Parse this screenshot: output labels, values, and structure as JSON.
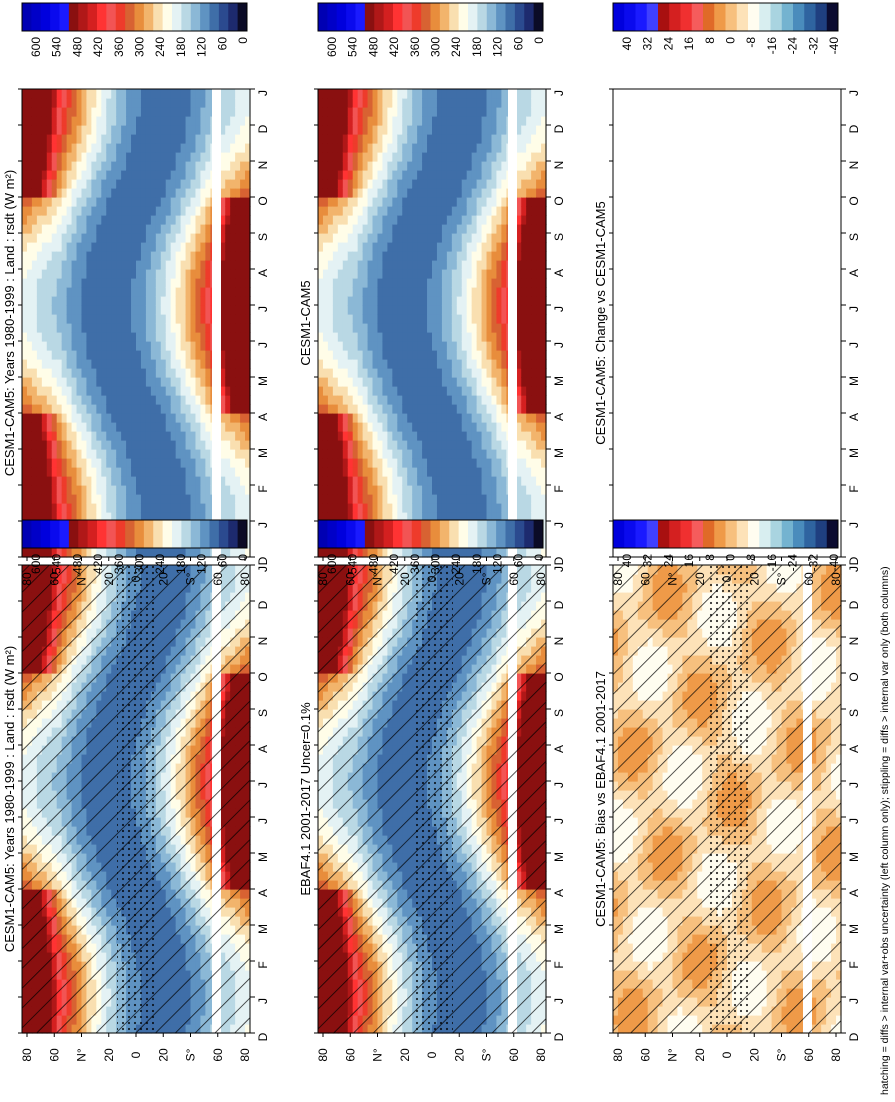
{
  "figure": {
    "footer_note": "hatching = diffs > internal var+obs uncertainty (left column only); stippling = diffs > internal var only (both columns)"
  },
  "palettes": {
    "abs_colors": [
      "#0b0b26",
      "#1d2a6e",
      "#2b4a8f",
      "#3f6ea8",
      "#5f93c2",
      "#8bb8d6",
      "#b9d8e4",
      "#e4f2f4",
      "#fffde8",
      "#f9dfb0",
      "#f2b46c",
      "#e88d3c",
      "#d86232",
      "#ee3b2b",
      "#f25454",
      "#ff3333",
      "#d42020",
      "#b01818",
      "#8a1010",
      "#1a1aff",
      "#0a0aee",
      "#0000dd",
      "#0000c8",
      "#0000b3"
    ],
    "abs_ticks": [
      "600",
      "540",
      "480",
      "420",
      "360",
      "300",
      "240",
      "180",
      "120",
      "60",
      "0"
    ],
    "diff_colors": [
      "#0000dd",
      "#0a0aee",
      "#1a1aff",
      "#4040ff",
      "#a81010",
      "#d42020",
      "#f03030",
      "#f55c5c",
      "#e06a28",
      "#ef9a48",
      "#f7c07e",
      "#fde2b8",
      "#fffdf0",
      "#d8eef0",
      "#a9d4e0",
      "#74b3d0",
      "#4a8cbc",
      "#2f64a0",
      "#1f3f80",
      "#0b0b30"
    ],
    "diff_ticks": [
      "40",
      "32",
      "24",
      "16",
      "8",
      "0",
      "-8",
      "-16",
      "-24",
      "-32",
      "-40"
    ]
  },
  "panels": [
    {
      "title": "CESM1-CAM5: Years 1980-1999 : Land : rsdt (W m²)",
      "kind": "abs",
      "hatch": true,
      "stipple": true
    },
    {
      "title": "CESM1-CAM5: Years 1980-1999 : Land : rsdt (W m²)",
      "kind": "abs",
      "hatch": false,
      "stipple": false
    },
    {
      "title": "EBAF4.1 2001-2017 Uncer=0.1%",
      "kind": "abs",
      "hatch": true,
      "stipple": true
    },
    {
      "title": "CESM1-CAM5",
      "kind": "abs",
      "hatch": false,
      "stipple": false
    },
    {
      "title": "CESM1-CAM5: Bias vs EBAF4.1 2001-2017",
      "kind": "bias",
      "hatch": true,
      "stipple": true
    },
    {
      "title": "CESM1-CAM5: Change vs CESM1-CAM5",
      "kind": "blank",
      "hatch": false,
      "stipple": false
    }
  ],
  "axes": {
    "month_labels": [
      "D",
      "J",
      "F",
      "M",
      "A",
      "M",
      "J",
      "J",
      "A",
      "S",
      "O",
      "N",
      "D",
      "J"
    ],
    "lat_labels": [
      "80",
      "60",
      "N°",
      "20",
      "0",
      "20",
      "S°",
      "60",
      "80"
    ]
  },
  "chart_data": [
    {
      "type": "heatmap",
      "title": "CESM1-CAM5: Years 1980-1999 : Land : rsdt (W m²)",
      "x": "month",
      "y": "latitude",
      "colorbar": [
        "600",
        "540",
        "480",
        "420",
        "360",
        "300",
        "240",
        "180",
        "120",
        "60",
        "0"
      ]
    },
    {
      "type": "heatmap",
      "title": "CESM1-CAM5: Years 1980-1999 : Land : rsdt (W m²)",
      "x": "month",
      "y": "latitude",
      "colorbar": [
        "600",
        "540",
        "480",
        "420",
        "360",
        "300",
        "240",
        "180",
        "120",
        "60",
        "0"
      ]
    },
    {
      "type": "heatmap",
      "title": "EBAF4.1 2001-2017 Uncer=0.1%",
      "x": "month",
      "y": "latitude",
      "colorbar": [
        "600",
        "540",
        "480",
        "420",
        "360",
        "300",
        "240",
        "180",
        "120",
        "60",
        "0"
      ]
    },
    {
      "type": "heatmap",
      "title": "CESM1-CAM5",
      "x": "month",
      "y": "latitude",
      "colorbar": [
        "600",
        "540",
        "480",
        "420",
        "360",
        "300",
        "240",
        "180",
        "120",
        "60",
        "0"
      ]
    },
    {
      "type": "heatmap",
      "title": "CESM1-CAM5: Bias vs EBAF4.1 2001-2017",
      "x": "month",
      "y": "latitude",
      "colorbar": [
        "40",
        "32",
        "24",
        "16",
        "8",
        "0",
        "-8",
        "-16",
        "-24",
        "-32",
        "-40"
      ]
    },
    {
      "type": "heatmap",
      "title": "CESM1-CAM5: Change vs CESM1-CAM5",
      "x": "month",
      "y": "latitude",
      "colorbar": [
        "40",
        "32",
        "24",
        "16",
        "8",
        "0",
        "-8",
        "-16",
        "-24",
        "-32",
        "-40"
      ]
    }
  ]
}
